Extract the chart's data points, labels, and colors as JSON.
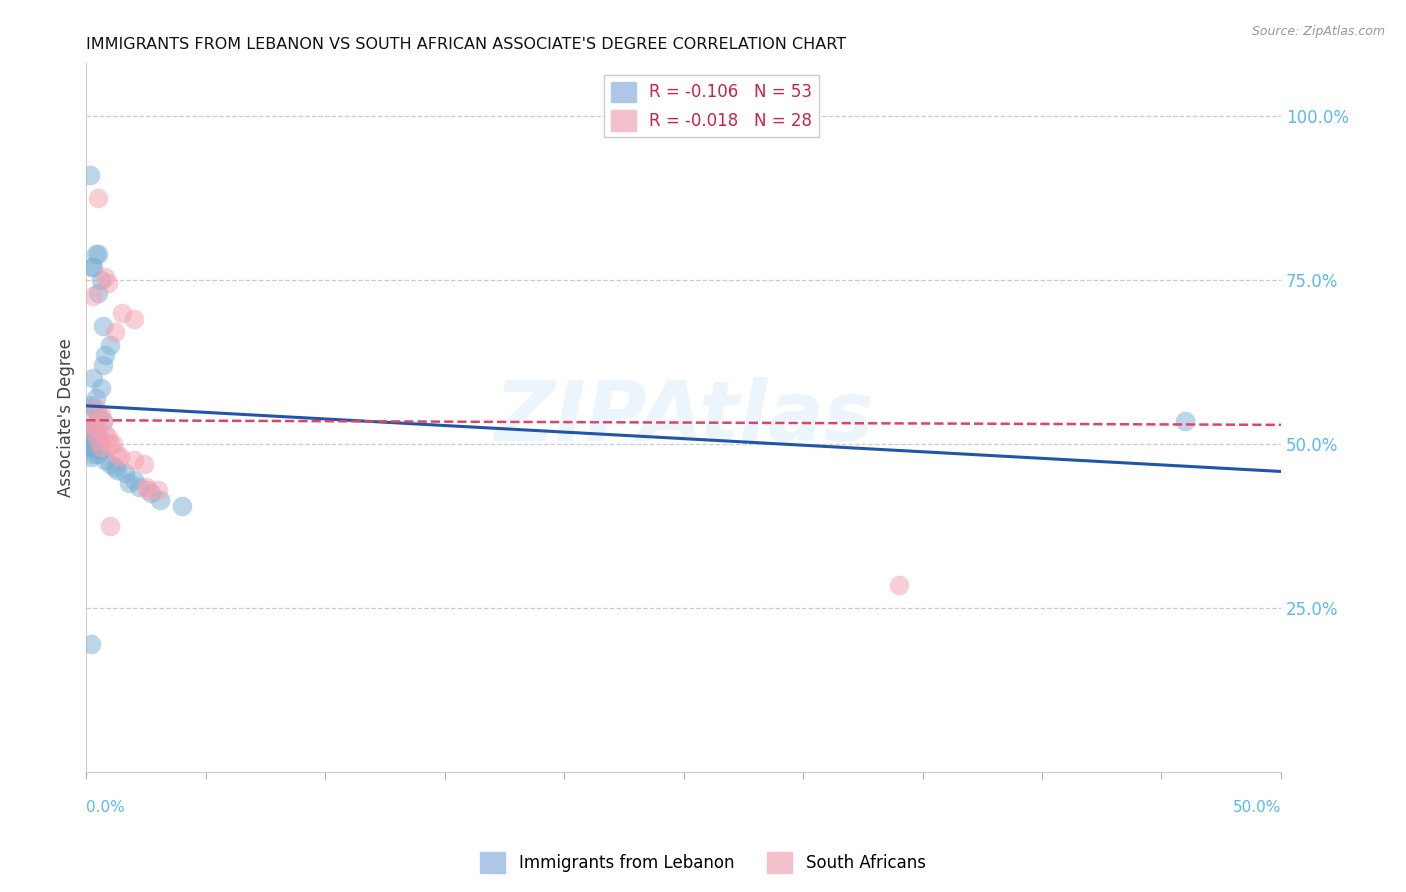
{
  "title": "IMMIGRANTS FROM LEBANON VS SOUTH AFRICAN ASSOCIATE'S DEGREE CORRELATION CHART",
  "source": "Source: ZipAtlas.com",
  "ylabel": "Associate's Degree",
  "watermark": "ZIPAtlas",
  "xlim": [
    0.0,
    0.5
  ],
  "ylim": [
    0.0,
    1.08
  ],
  "right_ytick_labels": [
    "25.0%",
    "50.0%",
    "75.0%",
    "100.0%"
  ],
  "right_ytick_values": [
    0.25,
    0.5,
    0.75,
    1.0
  ],
  "lebanon_color": "#7bafd4",
  "sa_color": "#f4a0b0",
  "lebanon_line_color": "#2255aa",
  "sa_line_color": "#dd4466",
  "background_color": "#ffffff",
  "grid_color": "#cccccc",
  "title_color": "#111111",
  "right_axis_color": "#5bb8f5",
  "lebanon_dots": [
    [
      0.0015,
      0.91
    ],
    [
      0.004,
      0.79
    ],
    [
      0.005,
      0.79
    ],
    [
      0.003,
      0.77
    ],
    [
      0.0025,
      0.77
    ],
    [
      0.006,
      0.75
    ],
    [
      0.005,
      0.73
    ],
    [
      0.007,
      0.68
    ],
    [
      0.01,
      0.65
    ],
    [
      0.008,
      0.635
    ],
    [
      0.007,
      0.62
    ],
    [
      0.003,
      0.6
    ],
    [
      0.006,
      0.585
    ],
    [
      0.004,
      0.57
    ],
    [
      0.002,
      0.56
    ],
    [
      0.003,
      0.555
    ],
    [
      0.005,
      0.545
    ],
    [
      0.007,
      0.535
    ],
    [
      0.002,
      0.525
    ],
    [
      0.0015,
      0.52
    ],
    [
      0.003,
      0.52
    ],
    [
      0.004,
      0.515
    ],
    [
      0.005,
      0.515
    ],
    [
      0.002,
      0.51
    ],
    [
      0.003,
      0.51
    ],
    [
      0.0015,
      0.51
    ],
    [
      0.004,
      0.51
    ],
    [
      0.0005,
      0.505
    ],
    [
      0.002,
      0.505
    ],
    [
      0.003,
      0.5
    ],
    [
      0.001,
      0.5
    ],
    [
      0.002,
      0.5
    ],
    [
      0.004,
      0.5
    ],
    [
      0.002,
      0.495
    ],
    [
      0.003,
      0.495
    ],
    [
      0.001,
      0.495
    ],
    [
      0.006,
      0.49
    ],
    [
      0.003,
      0.485
    ],
    [
      0.005,
      0.485
    ],
    [
      0.002,
      0.48
    ],
    [
      0.008,
      0.475
    ],
    [
      0.01,
      0.47
    ],
    [
      0.012,
      0.465
    ],
    [
      0.013,
      0.46
    ],
    [
      0.016,
      0.455
    ],
    [
      0.02,
      0.445
    ],
    [
      0.018,
      0.44
    ],
    [
      0.022,
      0.435
    ],
    [
      0.027,
      0.425
    ],
    [
      0.031,
      0.415
    ],
    [
      0.04,
      0.405
    ],
    [
      0.46,
      0.535
    ],
    [
      0.002,
      0.195
    ]
  ],
  "sa_dots": [
    [
      0.005,
      0.875
    ],
    [
      0.008,
      0.755
    ],
    [
      0.009,
      0.745
    ],
    [
      0.003,
      0.725
    ],
    [
      0.015,
      0.7
    ],
    [
      0.02,
      0.69
    ],
    [
      0.012,
      0.67
    ],
    [
      0.004,
      0.555
    ],
    [
      0.006,
      0.545
    ],
    [
      0.007,
      0.535
    ],
    [
      0.002,
      0.53
    ],
    [
      0.004,
      0.525
    ],
    [
      0.003,
      0.52
    ],
    [
      0.008,
      0.515
    ],
    [
      0.009,
      0.51
    ],
    [
      0.005,
      0.505
    ],
    [
      0.01,
      0.5
    ],
    [
      0.011,
      0.5
    ],
    [
      0.006,
      0.495
    ],
    [
      0.013,
      0.485
    ],
    [
      0.014,
      0.48
    ],
    [
      0.02,
      0.475
    ],
    [
      0.024,
      0.47
    ],
    [
      0.025,
      0.435
    ],
    [
      0.026,
      0.43
    ],
    [
      0.03,
      0.43
    ],
    [
      0.34,
      0.285
    ],
    [
      0.01,
      0.375
    ]
  ],
  "lebanon_line_x": [
    0.0,
    0.5
  ],
  "lebanon_line_y": [
    0.558,
    0.458
  ],
  "sa_line_x": [
    0.0,
    0.5
  ],
  "sa_line_y": [
    0.536,
    0.529
  ]
}
